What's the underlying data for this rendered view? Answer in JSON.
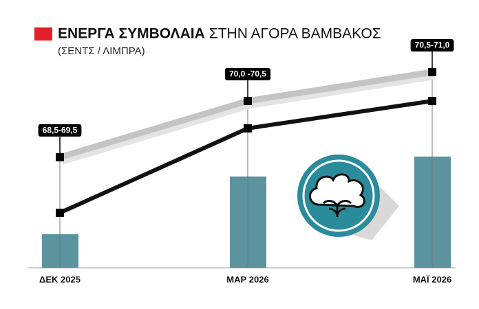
{
  "chart_data": {
    "type": "line-bar",
    "title": "ΕΝΕΡΓΑ ΣΥΜΒΟΛΑΙΑ",
    "title_rest": "ΣΤΗΝ ΑΓΟΡΑ ΒΑΜΒΑΚΟΣ",
    "subtitle": "(ΣΕΝΤΣ / ΛΙΜΠΡΑ)",
    "legend_color": "#e3202a",
    "categories": [
      "ΔΕΚ 2025",
      "ΜΑΡ 2026",
      "ΜΑΪ 2026"
    ],
    "annotations": [
      "68,5-69,5",
      "70,0 -70,5",
      "70,5-71,0"
    ],
    "bars": {
      "color": "#5b939e",
      "values": [
        16.3,
        44.3,
        54
      ]
    },
    "series": [
      {
        "color": "#c4c4c4",
        "values": [
          53.7,
          81,
          95
        ]
      },
      {
        "color": "#111111",
        "values": [
          26.7,
          67.7,
          81
        ]
      }
    ],
    "ylim": [
      0,
      100
    ]
  }
}
